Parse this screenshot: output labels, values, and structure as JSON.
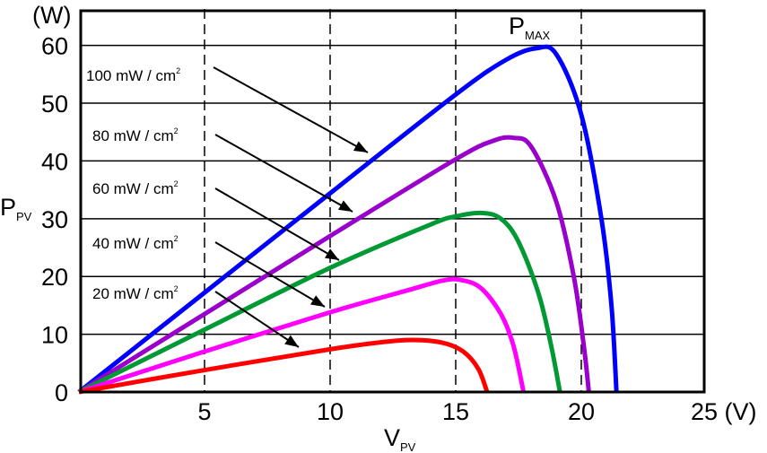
{
  "chart_data": {
    "type": "line",
    "xlabel": "V",
    "xlabel_sub": "PV",
    "ylabel": "P",
    "ylabel_sub": "PV",
    "x_unit": "(V)",
    "y_unit": "(W)",
    "xlim": [
      0,
      25
    ],
    "ylim": [
      0,
      66
    ],
    "x_ticks": [
      5,
      10,
      15,
      20,
      25
    ],
    "x_tick_labels": [
      "5",
      "10",
      "15",
      "20",
      "25 (V)"
    ],
    "y_ticks": [
      0,
      10,
      20,
      30,
      40,
      50,
      60
    ],
    "y_tick_labels": [
      "0",
      "10",
      "20",
      "30",
      "40",
      "50",
      "60"
    ],
    "grid": {
      "horizontal": "solid",
      "vertical": "dashed"
    },
    "annotation": {
      "main": "P",
      "sub": "MAX"
    },
    "series": [
      {
        "name": "100 mW / cm²",
        "color": "#0000ff",
        "x": [
          0,
          5,
          10,
          15,
          17,
          18.2,
          19,
          20,
          20.8,
          21.2,
          21.4
        ],
        "y": [
          0,
          17.2,
          34.4,
          51.5,
          57.5,
          59.5,
          58.5,
          48,
          30,
          15,
          0
        ]
      },
      {
        "name": "80 mW / cm²",
        "color": "#9900cc",
        "x": [
          0,
          5,
          10,
          15,
          16.5,
          17.3,
          18,
          19,
          19.7,
          20.1,
          20.3
        ],
        "y": [
          0,
          13.5,
          27,
          40.3,
          43.5,
          44,
          42.5,
          33,
          20,
          8,
          0
        ]
      },
      {
        "name": "60 mW / cm²",
        "color": "#009933",
        "x": [
          0,
          5,
          10,
          14,
          15,
          16,
          16.8,
          17.5,
          18.3,
          18.8,
          19.15
        ],
        "y": [
          0,
          10.8,
          21.5,
          29,
          30.4,
          31,
          30,
          26,
          17,
          8,
          0
        ]
      },
      {
        "name": "40 mW / cm²",
        "color": "#ff00ff",
        "x": [
          0,
          5,
          10,
          13,
          14.5,
          15.2,
          16,
          16.8,
          17.3,
          17.7
        ],
        "y": [
          0,
          7,
          13.8,
          17.5,
          19.3,
          19.4,
          18,
          13.5,
          8,
          0
        ]
      },
      {
        "name": "20 mW / cm²",
        "color": "#ff0000",
        "x": [
          0,
          5,
          10,
          12,
          13.3,
          14.5,
          15.3,
          15.9,
          16.25
        ],
        "y": [
          0,
          3.8,
          7.4,
          8.6,
          9,
          8.5,
          7,
          4,
          0
        ]
      }
    ]
  }
}
